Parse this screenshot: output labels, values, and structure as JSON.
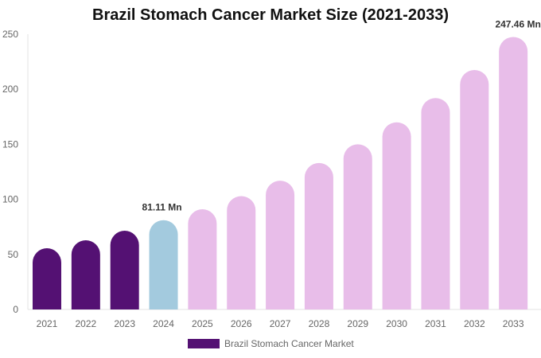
{
  "chart_data": {
    "type": "bar",
    "title": "Brazil Stomach Cancer Market Size (2021-2033)",
    "xlabel": "",
    "ylabel": "",
    "ylim": [
      0,
      250
    ],
    "yticks": [
      0,
      50,
      100,
      150,
      200,
      250
    ],
    "categories": [
      "2021",
      "2022",
      "2023",
      "2024",
      "2025",
      "2026",
      "2027",
      "2028",
      "2029",
      "2030",
      "2031",
      "2032",
      "2033"
    ],
    "series": [
      {
        "name": "Brazil Stomach Cancer Market",
        "values": [
          55.6,
          62.9,
          71.5,
          81.11,
          91.0,
          103.0,
          117.0,
          133.0,
          150.0,
          170.0,
          192.0,
          217.5,
          247.46
        ]
      }
    ],
    "data_labels": [
      {
        "category": "2024",
        "text": "81.11 Mn"
      },
      {
        "category": "2033",
        "text": "247.46 Mn"
      }
    ],
    "colors": {
      "historical": "#541173",
      "base_year": "#a3cade",
      "forecast": "#e8bde9"
    },
    "color_groups": [
      "historical",
      "historical",
      "historical",
      "base_year",
      "forecast",
      "forecast",
      "forecast",
      "forecast",
      "forecast",
      "forecast",
      "forecast",
      "forecast",
      "forecast"
    ],
    "grid": false,
    "legend": "bottom"
  }
}
